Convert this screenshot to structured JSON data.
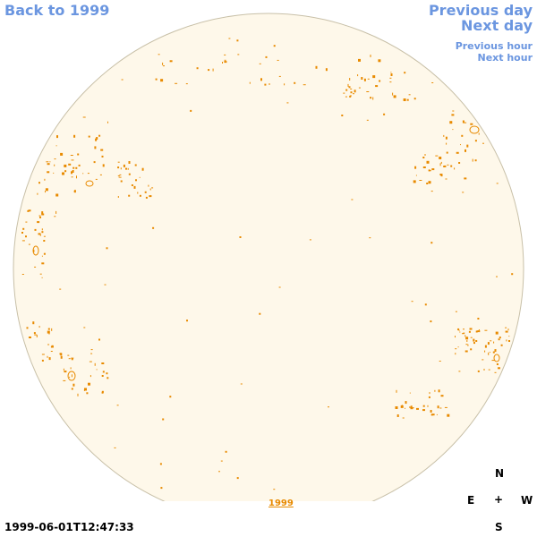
{
  "nav": {
    "back": "Back to 1999",
    "previous_day": "Previous day",
    "next_day": "Next day",
    "previous_hour": "Previous hour",
    "next_hour": "Next hour"
  },
  "timestamp": "1999-06-01T12:47:33",
  "compass": {
    "north": "N",
    "east": "E",
    "center": "+",
    "west": "W",
    "south": "S"
  },
  "year_link": "1999",
  "colors": {
    "disc_fill": "#fef8ea",
    "disc_edge": "#c8c0a8",
    "contour": "#e88a00",
    "link": "#6b96e0"
  }
}
